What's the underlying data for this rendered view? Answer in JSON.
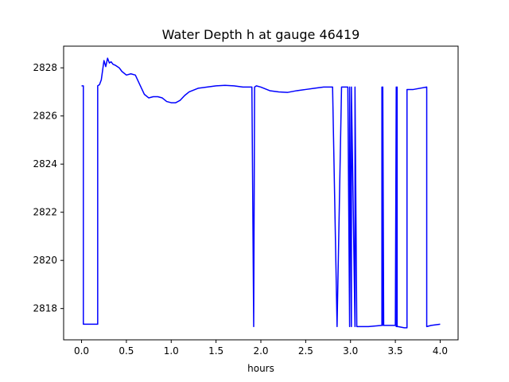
{
  "chart_data": {
    "type": "line",
    "title": "Water Depth h at gauge 46419",
    "xlabel": "hours",
    "ylabel": "",
    "xlim": [
      -0.2,
      4.2
    ],
    "ylim": [
      2816.7,
      2828.9
    ],
    "xticks": [
      0.0,
      0.5,
      1.0,
      1.5,
      2.0,
      2.5,
      3.0,
      3.5,
      4.0
    ],
    "xtick_labels": [
      "0.0",
      "0.5",
      "1.0",
      "1.5",
      "2.0",
      "2.5",
      "3.0",
      "3.5",
      "4.0"
    ],
    "yticks": [
      2818,
      2820,
      2822,
      2824,
      2826,
      2828
    ],
    "ytick_labels": [
      "2818",
      "2820",
      "2822",
      "2824",
      "2826",
      "2828"
    ],
    "grid": false,
    "series": [
      {
        "color": "#0000ff",
        "x": [
          0.0,
          0.02,
          0.02,
          0.18,
          0.18,
          0.2,
          0.22,
          0.25,
          0.27,
          0.29,
          0.31,
          0.33,
          0.35,
          0.38,
          0.42,
          0.45,
          0.5,
          0.55,
          0.6,
          0.65,
          0.7,
          0.75,
          0.8,
          0.85,
          0.9,
          0.95,
          1.0,
          1.05,
          1.1,
          1.15,
          1.2,
          1.3,
          1.4,
          1.5,
          1.6,
          1.7,
          1.8,
          1.9,
          1.92,
          1.92,
          1.93,
          1.93,
          1.95,
          2.0,
          2.1,
          2.2,
          2.3,
          2.4,
          2.5,
          2.6,
          2.7,
          2.8,
          2.85,
          2.85,
          2.9,
          2.9,
          2.97,
          2.99,
          2.99,
          3.01,
          3.01,
          3.05,
          3.05,
          3.07,
          3.07,
          3.2,
          3.35,
          3.35,
          3.36,
          3.36,
          3.37,
          3.5,
          3.51,
          3.51,
          3.52,
          3.52,
          3.53,
          3.6,
          3.63,
          3.63,
          3.7,
          3.85,
          3.85,
          3.9,
          4.0
        ],
        "y": [
          2827.25,
          2827.25,
          2817.35,
          2817.35,
          2827.25,
          2827.3,
          2827.5,
          2828.3,
          2828.05,
          2828.4,
          2828.2,
          2828.25,
          2828.15,
          2828.1,
          2828.0,
          2827.85,
          2827.7,
          2827.75,
          2827.7,
          2827.3,
          2826.9,
          2826.75,
          2826.8,
          2826.8,
          2826.75,
          2826.6,
          2826.55,
          2826.55,
          2826.65,
          2826.85,
          2827.0,
          2827.15,
          2827.2,
          2827.25,
          2827.27,
          2827.25,
          2827.2,
          2827.2,
          2817.25,
          2817.25,
          2827.2,
          2827.2,
          2827.25,
          2827.2,
          2827.05,
          2827.0,
          2826.98,
          2827.05,
          2827.1,
          2827.15,
          2827.2,
          2827.2,
          2817.25,
          2817.25,
          2827.2,
          2827.2,
          2827.2,
          2817.25,
          2827.2,
          2817.25,
          2827.2,
          2817.25,
          2827.2,
          2817.25,
          2817.25,
          2817.25,
          2817.3,
          2827.2,
          2817.3,
          2827.2,
          2817.3,
          2817.3,
          2827.2,
          2817.25,
          2827.2,
          2817.25,
          2817.25,
          2817.2,
          2817.2,
          2827.1,
          2827.1,
          2827.2,
          2817.25,
          2817.3,
          2817.35
        ]
      }
    ]
  }
}
